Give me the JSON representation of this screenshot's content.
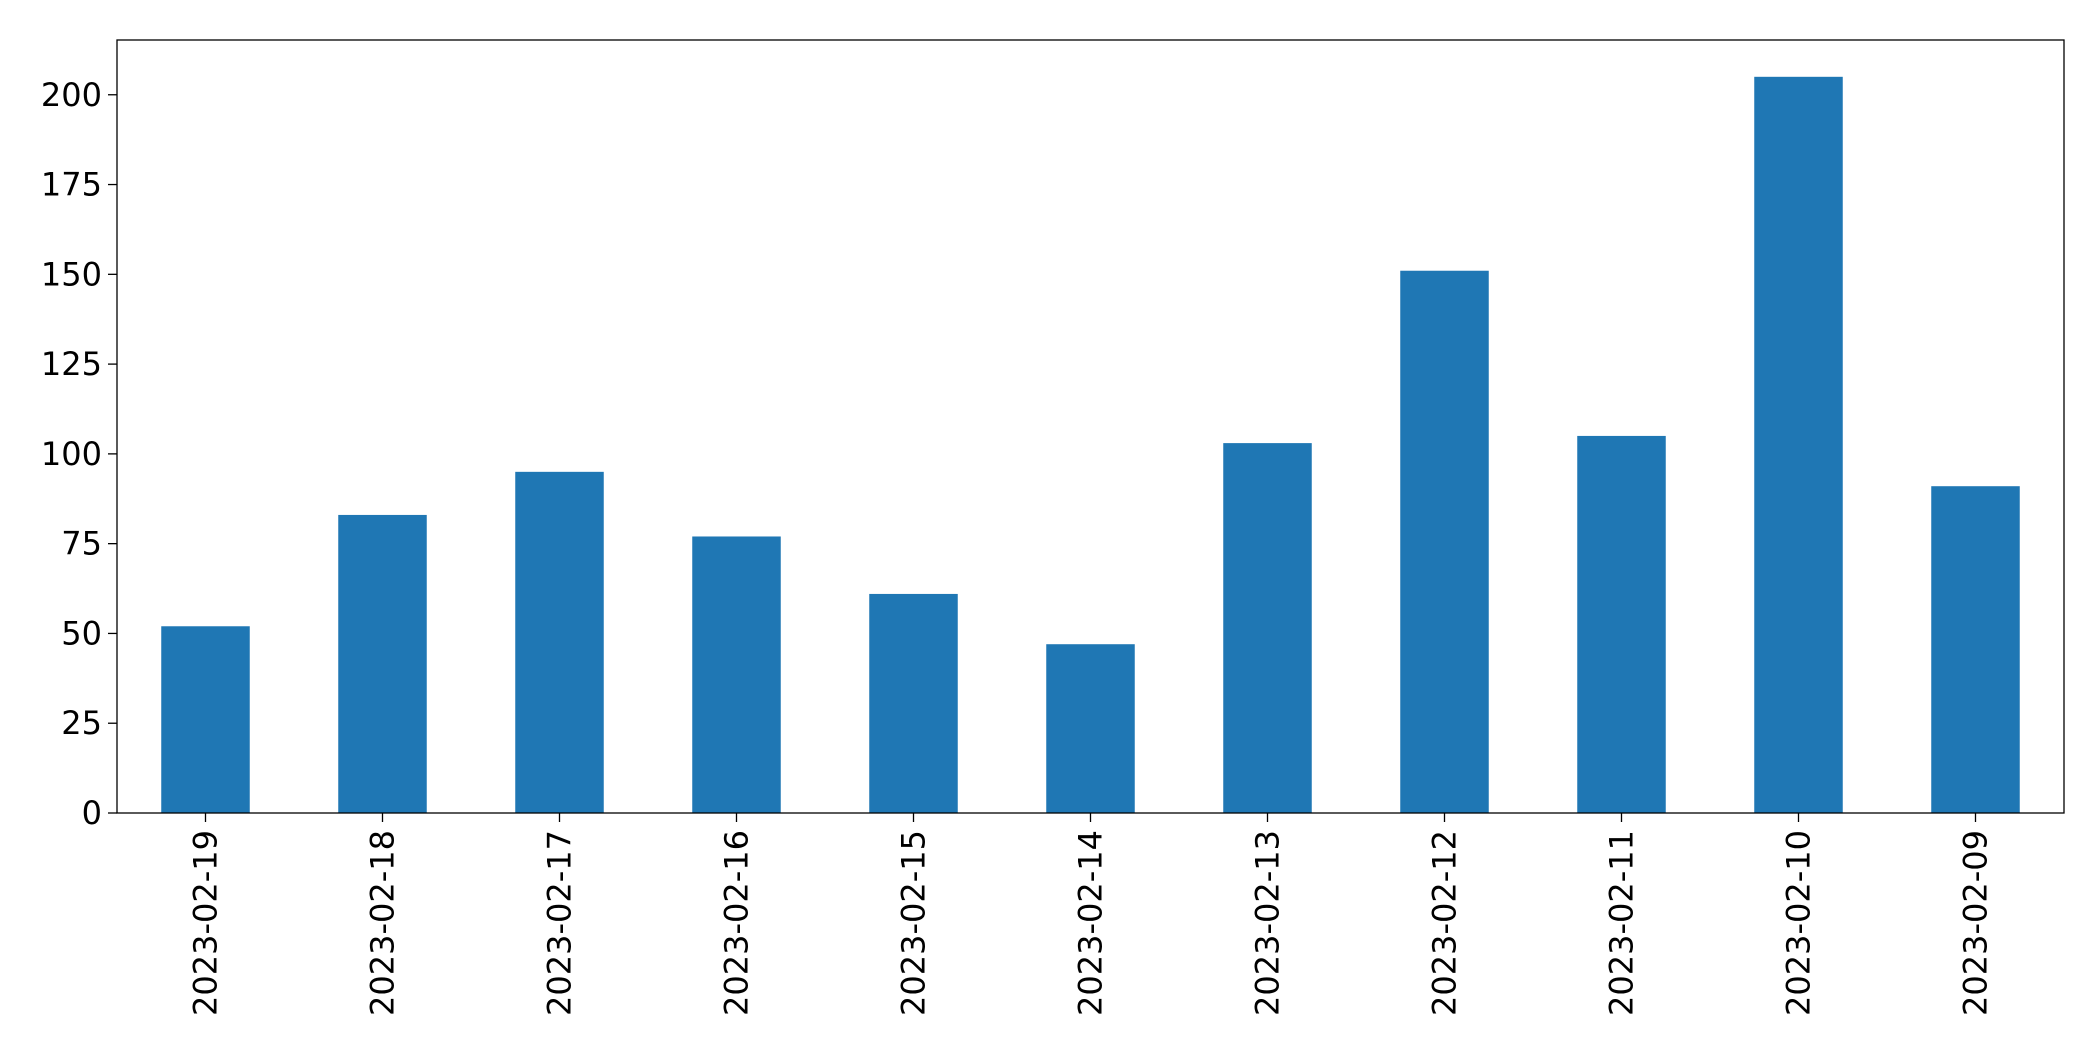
{
  "chart_data": {
    "type": "bar",
    "categories": [
      "2023-02-19",
      "2023-02-18",
      "2023-02-17",
      "2023-02-16",
      "2023-02-15",
      "2023-02-14",
      "2023-02-13",
      "2023-02-12",
      "2023-02-11",
      "2023-02-10",
      "2023-02-09"
    ],
    "values": [
      52,
      83,
      95,
      77,
      61,
      47,
      103,
      151,
      105,
      205,
      91
    ],
    "color": "#1f77b4",
    "ylim": [
      0,
      215.25
    ],
    "yticks": [
      0,
      25,
      50,
      75,
      100,
      125,
      150,
      175,
      200
    ],
    "grid": false
  }
}
